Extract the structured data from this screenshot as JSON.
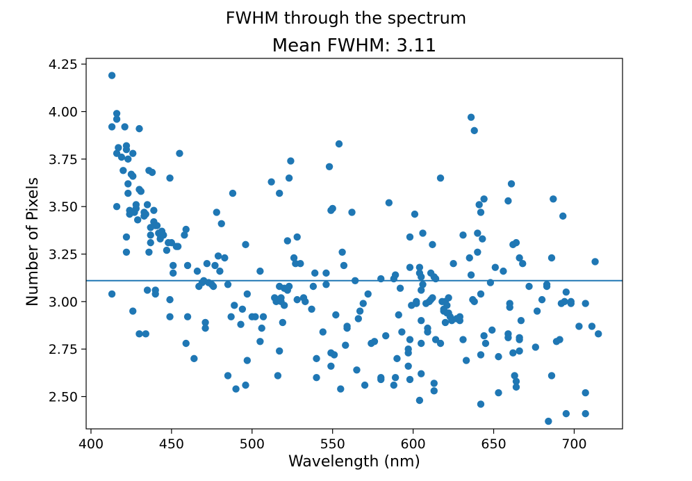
{
  "chart_data": {
    "type": "scatter",
    "suptitle": "FWHM through the spectrum",
    "title": "Mean FWHM: 3.11",
    "xlabel": "Wavelength (nm)",
    "ylabel": "Number of Pixels",
    "xlim": [
      397,
      730
    ],
    "ylim": [
      2.33,
      4.28
    ],
    "xticks": [
      400,
      450,
      500,
      550,
      600,
      650,
      700
    ],
    "yticks": [
      2.5,
      2.75,
      3.0,
      3.25,
      3.5,
      3.75,
      4.0,
      4.25
    ],
    "xtick_labels": [
      "400",
      "450",
      "500",
      "550",
      "600",
      "650",
      "700"
    ],
    "ytick_labels": [
      "2.50",
      "2.75",
      "3.00",
      "3.25",
      "3.50",
      "3.75",
      "4.00",
      "4.25"
    ],
    "grid": false,
    "mean_line": 3.11,
    "color": "#1f77b4",
    "points": [
      [
        413,
        4.19
      ],
      [
        413,
        3.92
      ],
      [
        413,
        3.04
      ],
      [
        416,
        3.99
      ],
      [
        416,
        3.96
      ],
      [
        416,
        3.78
      ],
      [
        416,
        3.5
      ],
      [
        417,
        3.81
      ],
      [
        419,
        3.76
      ],
      [
        420,
        3.69
      ],
      [
        421,
        3.92
      ],
      [
        422,
        3.82
      ],
      [
        422,
        3.8
      ],
      [
        422,
        3.34
      ],
      [
        422,
        3.26
      ],
      [
        423,
        3.62
      ],
      [
        423,
        3.57
      ],
      [
        423,
        3.75
      ],
      [
        424,
        3.48
      ],
      [
        424,
        3.46
      ],
      [
        425,
        3.67
      ],
      [
        426,
        3.66
      ],
      [
        426,
        3.78
      ],
      [
        426,
        2.95
      ],
      [
        427,
        3.47
      ],
      [
        428,
        3.51
      ],
      [
        428,
        3.49
      ],
      [
        429,
        3.43
      ],
      [
        430,
        3.91
      ],
      [
        430,
        3.59
      ],
      [
        430,
        2.83
      ],
      [
        431,
        3.58
      ],
      [
        433,
        3.45
      ],
      [
        433,
        3.47
      ],
      [
        434,
        3.46
      ],
      [
        434,
        2.83
      ],
      [
        435,
        3.51
      ],
      [
        435,
        3.06
      ],
      [
        436,
        3.69
      ],
      [
        436,
        3.26
      ],
      [
        437,
        3.39
      ],
      [
        437,
        3.35
      ],
      [
        437,
        3.31
      ],
      [
        438,
        3.68
      ],
      [
        439,
        3.48
      ],
      [
        439,
        3.42
      ],
      [
        440,
        3.4
      ],
      [
        440,
        3.06
      ],
      [
        440,
        3.04
      ],
      [
        441,
        3.4
      ],
      [
        442,
        3.36
      ],
      [
        443,
        3.35
      ],
      [
        443,
        3.33
      ],
      [
        444,
        3.37
      ],
      [
        445,
        3.35
      ],
      [
        447,
        3.27
      ],
      [
        448,
        3.31
      ],
      [
        449,
        3.65
      ],
      [
        449,
        3.01
      ],
      [
        449,
        2.92
      ],
      [
        450,
        3.31
      ],
      [
        451,
        3.15
      ],
      [
        451,
        3.19
      ],
      [
        453,
        3.29
      ],
      [
        454,
        3.29
      ],
      [
        455,
        3.78
      ],
      [
        458,
        3.35
      ],
      [
        459,
        3.38
      ],
      [
        459,
        2.78
      ],
      [
        460,
        3.19
      ],
      [
        460,
        2.92
      ],
      [
        464,
        2.7
      ],
      [
        466,
        3.16
      ],
      [
        467,
        3.08
      ],
      [
        469,
        3.1
      ],
      [
        470,
        3.11
      ],
      [
        471,
        2.89
      ],
      [
        471,
        2.86
      ],
      [
        472,
        3.2
      ],
      [
        473,
        3.1
      ],
      [
        475,
        3.09
      ],
      [
        476,
        3.08
      ],
      [
        477,
        3.19
      ],
      [
        478,
        3.47
      ],
      [
        479,
        3.24
      ],
      [
        480,
        3.16
      ],
      [
        481,
        3.41
      ],
      [
        483,
        3.23
      ],
      [
        485,
        3.09
      ],
      [
        485,
        2.61
      ],
      [
        487,
        2.92
      ],
      [
        488,
        3.57
      ],
      [
        489,
        2.98
      ],
      [
        490,
        2.54
      ],
      [
        493,
        2.88
      ],
      [
        494,
        2.96
      ],
      [
        496,
        2.56
      ],
      [
        496,
        3.3
      ],
      [
        497,
        3.04
      ],
      [
        497,
        2.69
      ],
      [
        500,
        2.92
      ],
      [
        502,
        2.92
      ],
      [
        505,
        3.16
      ],
      [
        505,
        2.79
      ],
      [
        506,
        2.86
      ],
      [
        507,
        2.92
      ],
      [
        512,
        3.63
      ],
      [
        514,
        3.02
      ],
      [
        515,
        3.0
      ],
      [
        516,
        3.01
      ],
      [
        516,
        2.61
      ],
      [
        517,
        3.57
      ],
      [
        517,
        3.08
      ],
      [
        517,
        2.74
      ],
      [
        518,
        3.0
      ],
      [
        518,
        3.02
      ],
      [
        519,
        2.89
      ],
      [
        520,
        3.07
      ],
      [
        520,
        2.98
      ],
      [
        522,
        3.32
      ],
      [
        522,
        3.06
      ],
      [
        523,
        3.65
      ],
      [
        523,
        3.08
      ],
      [
        524,
        3.74
      ],
      [
        526,
        3.23
      ],
      [
        527,
        3.2
      ],
      [
        528,
        3.01
      ],
      [
        528,
        3.34
      ],
      [
        530,
        3.2
      ],
      [
        532,
        3.02
      ],
      [
        533,
        3.0
      ],
      [
        537,
        2.96
      ],
      [
        538,
        3.08
      ],
      [
        539,
        3.15
      ],
      [
        540,
        2.7
      ],
      [
        540,
        2.6
      ],
      [
        544,
        2.84
      ],
      [
        546,
        3.09
      ],
      [
        546,
        3.15
      ],
      [
        548,
        3.71
      ],
      [
        549,
        2.73
      ],
      [
        549,
        2.66
      ],
      [
        549,
        3.48
      ],
      [
        550,
        3.49
      ],
      [
        551,
        2.72
      ],
      [
        552,
        2.93
      ],
      [
        554,
        3.83
      ],
      [
        555,
        2.54
      ],
      [
        556,
        3.26
      ],
      [
        557,
        3.19
      ],
      [
        558,
        2.77
      ],
      [
        559,
        2.86
      ],
      [
        559,
        2.87
      ],
      [
        562,
        3.47
      ],
      [
        564,
        3.11
      ],
      [
        565,
        2.64
      ],
      [
        566,
        2.91
      ],
      [
        567,
        2.95
      ],
      [
        569,
        2.99
      ],
      [
        570,
        2.56
      ],
      [
        572,
        3.04
      ],
      [
        574,
        2.78
      ],
      [
        576,
        2.79
      ],
      [
        580,
        3.12
      ],
      [
        580,
        2.6
      ],
      [
        580,
        2.59
      ],
      [
        583,
        2.82
      ],
      [
        585,
        3.52
      ],
      [
        588,
        3.12
      ],
      [
        588,
        2.56
      ],
      [
        589,
        2.6
      ],
      [
        589,
        3.14
      ],
      [
        590,
        2.7
      ],
      [
        591,
        2.93
      ],
      [
        592,
        3.07
      ],
      [
        593,
        2.84
      ],
      [
        597,
        2.66
      ],
      [
        597,
        2.75
      ],
      [
        597,
        2.73
      ],
      [
        598,
        3.18
      ],
      [
        598,
        3.34
      ],
      [
        598,
        2.59
      ],
      [
        598,
        2.8
      ],
      [
        599,
        2.98
      ],
      [
        601,
        3.46
      ],
      [
        602,
        2.99
      ],
      [
        602,
        3.0
      ],
      [
        604,
        2.48
      ],
      [
        604,
        3.15
      ],
      [
        604,
        3.18
      ],
      [
        605,
        3.13
      ],
      [
        605,
        2.9
      ],
      [
        605,
        3.06
      ],
      [
        605,
        2.78
      ],
      [
        605,
        2.62
      ],
      [
        606,
        3.36
      ],
      [
        606,
        3.09
      ],
      [
        608,
        2.99
      ],
      [
        609,
        2.86
      ],
      [
        609,
        2.84
      ],
      [
        610,
        3.0
      ],
      [
        611,
        3.15
      ],
      [
        611,
        3.01
      ],
      [
        612,
        3.3
      ],
      [
        612,
        3.02
      ],
      [
        613,
        3.13
      ],
      [
        613,
        2.53
      ],
      [
        613,
        2.57
      ],
      [
        614,
        3.12
      ],
      [
        614,
        2.8
      ],
      [
        617,
        3.65
      ],
      [
        617,
        2.78
      ],
      [
        618,
        3.0
      ],
      [
        619,
        2.95
      ],
      [
        619,
        2.96
      ],
      [
        620,
        3.0
      ],
      [
        620,
        2.89
      ],
      [
        621,
        2.98
      ],
      [
        621,
        2.94
      ],
      [
        622,
        3.02
      ],
      [
        622,
        2.94
      ],
      [
        623,
        2.92
      ],
      [
        624,
        2.9
      ],
      [
        625,
        3.2
      ],
      [
        627,
        2.91
      ],
      [
        629,
        2.9
      ],
      [
        629,
        2.92
      ],
      [
        631,
        3.35
      ],
      [
        631,
        2.8
      ],
      [
        633,
        2.69
      ],
      [
        635,
        3.23
      ],
      [
        636,
        3.97
      ],
      [
        636,
        3.14
      ],
      [
        637,
        3.01
      ],
      [
        638,
        3.9
      ],
      [
        638,
        3.0
      ],
      [
        640,
        3.26
      ],
      [
        640,
        3.36
      ],
      [
        641,
        3.51
      ],
      [
        642,
        3.47
      ],
      [
        642,
        3.04
      ],
      [
        642,
        2.72
      ],
      [
        642,
        2.46
      ],
      [
        643,
        3.33
      ],
      [
        644,
        3.54
      ],
      [
        644,
        2.82
      ],
      [
        645,
        2.78
      ],
      [
        648,
        3.1
      ],
      [
        649,
        2.85
      ],
      [
        651,
        3.18
      ],
      [
        653,
        2.52
      ],
      [
        653,
        2.71
      ],
      [
        656,
        3.16
      ],
      [
        659,
        3.53
      ],
      [
        659,
        2.83
      ],
      [
        659,
        2.81
      ],
      [
        660,
        2.99
      ],
      [
        660,
        2.97
      ],
      [
        661,
        3.62
      ],
      [
        662,
        3.3
      ],
      [
        662,
        2.73
      ],
      [
        663,
        2.61
      ],
      [
        664,
        2.58
      ],
      [
        664,
        2.55
      ],
      [
        664,
        3.31
      ],
      [
        666,
        3.23
      ],
      [
        666,
        2.81
      ],
      [
        666,
        2.8
      ],
      [
        666,
        2.74
      ],
      [
        667,
        2.9
      ],
      [
        668,
        3.2
      ],
      [
        672,
        3.08
      ],
      [
        676,
        2.76
      ],
      [
        677,
        2.95
      ],
      [
        680,
        3.01
      ],
      [
        683,
        3.09
      ],
      [
        683,
        3.08
      ],
      [
        684,
        2.37
      ],
      [
        686,
        3.23
      ],
      [
        686,
        2.61
      ],
      [
        687,
        3.54
      ],
      [
        689,
        2.79
      ],
      [
        691,
        2.8
      ],
      [
        692,
        2.99
      ],
      [
        693,
        3.45
      ],
      [
        694,
        3.0
      ],
      [
        695,
        3.05
      ],
      [
        695,
        2.41
      ],
      [
        698,
        3.0
      ],
      [
        698,
        2.99
      ],
      [
        703,
        2.87
      ],
      [
        707,
        2.99
      ],
      [
        707,
        2.52
      ],
      [
        707,
        2.41
      ],
      [
        711,
        2.87
      ],
      [
        713,
        3.21
      ],
      [
        715,
        2.83
      ]
    ]
  }
}
